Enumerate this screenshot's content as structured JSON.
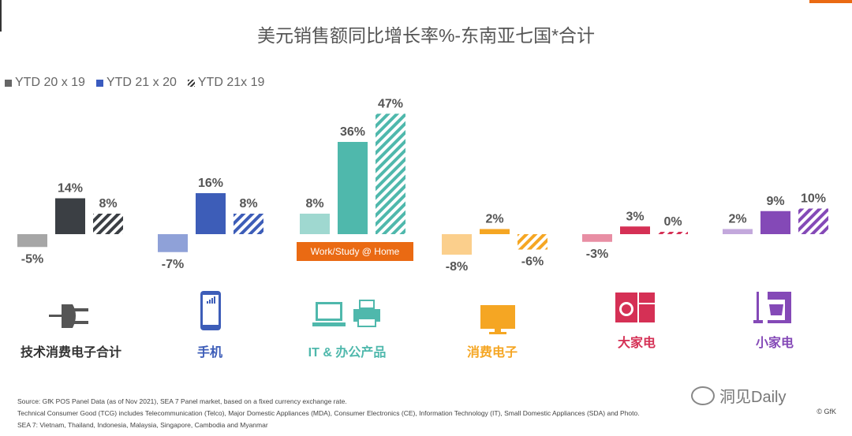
{
  "title": "美元销售额同比增长率%-东南亚七国*合计",
  "legend": [
    {
      "label": "YTD 20 x 19",
      "color": "#666666"
    },
    {
      "label": "YTD 21 x 20",
      "color": "#3a5bbf"
    },
    {
      "label": "YTD 21x 19",
      "color": "#333333"
    }
  ],
  "badge": "Work/Study @ Home",
  "footer": {
    "line1": "Source: GfK POS Panel Data (as of Nov 2021), SEA 7 Panel market, based on a fixed currency exchange rate.",
    "line2": "Technical Consumer Good (TCG) includes Telecommunication (Telco), Major Domestic Appliances (MDA), Consumer Electronics (CE), Information Technology (IT), Small Domestic Appliances (SDA) and Photo.",
    "line3": "SEA 7: Vietnam, Thailand, Indonesia, Malaysia, Singapore, Cambodia and Myanmar",
    "copyright": "© GfK"
  },
  "watermark": "洞见Daily",
  "chart_data": {
    "type": "bar",
    "title": "美元销售额同比增长率%-东南亚七国*合计",
    "categories": [
      "技术消费电子合计",
      "手机",
      "IT & 办公产品",
      "消费电子",
      "大家电",
      "小家电"
    ],
    "series": [
      {
        "name": "YTD 20 x 19",
        "values": [
          -5,
          -7,
          8,
          -8,
          -3,
          2
        ]
      },
      {
        "name": "YTD 21 x 20",
        "values": [
          14,
          16,
          36,
          2,
          3,
          9
        ]
      },
      {
        "name": "YTD 21x 19",
        "values": [
          8,
          8,
          47,
          -6,
          0,
          10
        ]
      }
    ],
    "value_labels": [
      [
        "-5%",
        "14%",
        "8%"
      ],
      [
        "-7%",
        "16%",
        "8%"
      ],
      [
        "8%",
        "36%",
        "47%"
      ],
      [
        "-8%",
        "2%",
        "-6%"
      ],
      [
        "-3%",
        "3%",
        "0%"
      ],
      [
        "2%",
        "9%",
        "10%"
      ]
    ],
    "colors": [
      {
        "light": "#a6a6a6",
        "main": "#3b3f44",
        "hatch": "#3b3f44"
      },
      {
        "light": "#8fa1d8",
        "main": "#3d5db8",
        "hatch": "#3d5db8"
      },
      {
        "light": "#9fd8d0",
        "main": "#4fb8ac",
        "hatch": "#4fb8ac"
      },
      {
        "light": "#fbcf8c",
        "main": "#f5a623",
        "hatch": "#f5a623"
      },
      {
        "light": "#e88ea4",
        "main": "#d53055",
        "hatch": "#d53055"
      },
      {
        "light": "#c3a8dc",
        "main": "#8449b7",
        "hatch": "#8449b7"
      }
    ],
    "ylim": [
      -10,
      50
    ]
  },
  "icons": [
    "plug-icon",
    "phone-icon",
    "laptop-printer-icon",
    "tv-icon",
    "washer-fridge-icon",
    "mixer-vacuum-icon"
  ]
}
